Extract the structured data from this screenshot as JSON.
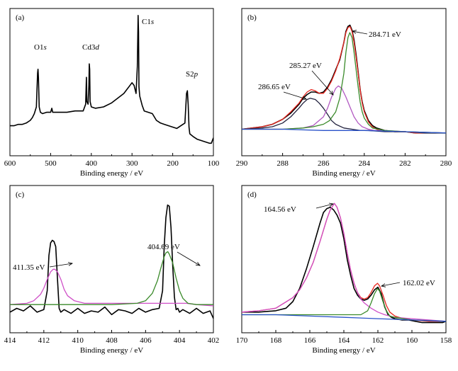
{
  "chart_data": [
    {
      "panel_label": "(a)",
      "type": "line",
      "xlabel": "Binding energy / eV",
      "ylabel": "",
      "xlim": [
        600,
        100
      ],
      "xticks": [
        600,
        500,
        400,
        300,
        200,
        100
      ],
      "x_reversed": true,
      "annotations": [
        {
          "text": "O1s",
          "x": 531
        },
        {
          "text": "Cd3d",
          "x": 405
        },
        {
          "text": "C1s",
          "x": 284.7
        },
        {
          "text": "S2p",
          "x": 162
        }
      ],
      "series": [
        {
          "color": "#000000",
          "x": [
            600,
            590,
            580,
            570,
            560,
            550,
            545,
            540,
            535,
            532,
            531,
            530,
            528,
            525,
            520,
            510,
            500,
            497,
            495,
            480,
            460,
            440,
            420,
            414,
            412,
            411,
            408,
            406,
            405,
            404,
            403,
            400,
            390,
            370,
            350,
            320,
            300,
            295,
            290,
            287,
            285,
            284,
            283,
            281,
            275,
            270,
            260,
            250,
            240,
            230,
            220,
            200,
            190,
            180,
            170,
            166,
            164,
            162,
            160,
            158,
            150,
            140,
            130,
            120,
            110,
            105,
            100
          ],
          "y": [
            0.16,
            0.16,
            0.17,
            0.17,
            0.18,
            0.2,
            0.22,
            0.25,
            0.3,
            0.55,
            0.58,
            0.52,
            0.3,
            0.26,
            0.25,
            0.26,
            0.26,
            0.29,
            0.26,
            0.26,
            0.26,
            0.27,
            0.27,
            0.32,
            0.52,
            0.34,
            0.32,
            0.46,
            0.62,
            0.58,
            0.34,
            0.3,
            0.29,
            0.3,
            0.33,
            0.4,
            0.48,
            0.46,
            0.4,
            0.6,
            0.98,
            0.86,
            0.45,
            0.38,
            0.31,
            0.27,
            0.26,
            0.25,
            0.2,
            0.18,
            0.17,
            0.15,
            0.14,
            0.16,
            0.18,
            0.4,
            0.42,
            0.32,
            0.15,
            0.1,
            0.08,
            0.06,
            0.05,
            0.04,
            0.03,
            0.03,
            0.07
          ]
        }
      ]
    },
    {
      "panel_label": "(b)",
      "type": "line",
      "xlabel": "Binding energy / eV",
      "xlim": [
        290,
        280
      ],
      "xticks": [
        290,
        288,
        286,
        284,
        282,
        280
      ],
      "x_reversed": true,
      "annotations": [
        {
          "text": "284.71 eV",
          "x": 284.71
        },
        {
          "text": "285.27 eV",
          "x": 285.27
        },
        {
          "text": "286.65 eV",
          "x": 286.65
        }
      ],
      "series": [
        {
          "color": "#000000",
          "role": "raw",
          "x": [
            290,
            289.5,
            289,
            288.5,
            288,
            287.6,
            287.2,
            287,
            286.8,
            286.6,
            286.4,
            286.2,
            286,
            285.8,
            285.6,
            285.4,
            285.2,
            285,
            284.9,
            284.8,
            284.7,
            284.6,
            284.5,
            284.4,
            284.3,
            284.2,
            284.1,
            284,
            283.8,
            283.6,
            283.4,
            283.2,
            283,
            282.5,
            282,
            281.5,
            281,
            280.5,
            280
          ],
          "y": [
            0.1,
            0.11,
            0.12,
            0.14,
            0.18,
            0.23,
            0.3,
            0.35,
            0.38,
            0.4,
            0.4,
            0.39,
            0.4,
            0.44,
            0.5,
            0.58,
            0.66,
            0.8,
            0.89,
            0.93,
            0.94,
            0.9,
            0.82,
            0.7,
            0.56,
            0.42,
            0.32,
            0.25,
            0.17,
            0.13,
            0.11,
            0.1,
            0.09,
            0.08,
            0.08,
            0.07,
            0.07,
            0.07,
            0.07
          ]
        },
        {
          "color": "#e8261e",
          "role": "fit envelope",
          "x": [
            290,
            289.5,
            289,
            288.5,
            288,
            287.6,
            287.2,
            287,
            286.8,
            286.6,
            286.4,
            286.2,
            286,
            285.8,
            285.6,
            285.4,
            285.2,
            285,
            284.9,
            284.8,
            284.7,
            284.6,
            284.5,
            284.4,
            284.3,
            284.2,
            284.1,
            284,
            283.8,
            283.6,
            283.4,
            283.2,
            283,
            282.5,
            282,
            281.5,
            281,
            280.5,
            280
          ],
          "y": [
            0.1,
            0.11,
            0.12,
            0.14,
            0.18,
            0.24,
            0.31,
            0.36,
            0.4,
            0.42,
            0.41,
            0.39,
            0.39,
            0.43,
            0.49,
            0.57,
            0.67,
            0.8,
            0.88,
            0.92,
            0.93,
            0.89,
            0.8,
            0.68,
            0.55,
            0.42,
            0.31,
            0.24,
            0.16,
            0.12,
            0.1,
            0.09,
            0.09,
            0.08,
            0.08,
            0.07,
            0.07,
            0.07,
            0.07
          ]
        },
        {
          "color": "#23233f",
          "role": "peak 286.65 eV",
          "x": [
            290,
            289,
            288.5,
            288,
            287.6,
            287.2,
            287,
            286.8,
            286.65,
            286.4,
            286.2,
            286,
            285.8,
            285.6,
            285.4,
            285,
            284.6,
            284.2,
            283.8,
            283,
            282,
            281,
            280
          ],
          "y": [
            0.1,
            0.11,
            0.12,
            0.15,
            0.2,
            0.27,
            0.31,
            0.34,
            0.35,
            0.34,
            0.31,
            0.27,
            0.22,
            0.17,
            0.14,
            0.11,
            0.1,
            0.09,
            0.09,
            0.08,
            0.08,
            0.07,
            0.07
          ]
        },
        {
          "color": "#b259c2",
          "role": "peak 285.27 eV",
          "x": [
            290,
            288,
            287,
            286.5,
            286,
            285.8,
            285.6,
            285.4,
            285.27,
            285.1,
            284.9,
            284.7,
            284.5,
            284.3,
            284.1,
            283.8,
            283.5,
            283,
            282,
            280
          ],
          "y": [
            0.1,
            0.1,
            0.11,
            0.13,
            0.2,
            0.27,
            0.36,
            0.43,
            0.45,
            0.43,
            0.36,
            0.28,
            0.2,
            0.15,
            0.12,
            0.1,
            0.09,
            0.09,
            0.08,
            0.07
          ]
        },
        {
          "color": "#3a8a2a",
          "role": "peak 284.71 eV",
          "x": [
            290,
            288,
            287,
            286.5,
            286,
            285.7,
            285.4,
            285.2,
            285,
            284.9,
            284.8,
            284.71,
            284.6,
            284.5,
            284.4,
            284.3,
            284.2,
            284.1,
            284,
            283.8,
            283.6,
            283.3,
            283,
            282,
            280
          ],
          "y": [
            0.1,
            0.1,
            0.11,
            0.12,
            0.14,
            0.17,
            0.24,
            0.35,
            0.55,
            0.72,
            0.84,
            0.88,
            0.84,
            0.72,
            0.58,
            0.44,
            0.32,
            0.24,
            0.19,
            0.14,
            0.11,
            0.1,
            0.09,
            0.08,
            0.07
          ]
        },
        {
          "color": "#2a52c9",
          "role": "background",
          "x": [
            290,
            288,
            286,
            284,
            282,
            280
          ],
          "y": [
            0.1,
            0.1,
            0.09,
            0.09,
            0.08,
            0.07
          ]
        }
      ]
    },
    {
      "panel_label": "(c)",
      "type": "line",
      "xlabel": "Binding energy / eV",
      "xlim": [
        414,
        402
      ],
      "xticks": [
        414,
        412,
        410,
        408,
        406,
        404,
        402
      ],
      "x_reversed": true,
      "annotations": [
        {
          "text": "411.35 eV",
          "x": 411.35
        },
        {
          "text": "404.69 eV",
          "x": 404.69
        }
      ],
      "series": [
        {
          "color": "#000000",
          "role": "raw",
          "x": [
            414,
            413.6,
            413.2,
            412.8,
            412.4,
            412,
            411.8,
            411.7,
            411.6,
            411.5,
            411.4,
            411.3,
            411.2,
            411.1,
            411,
            410.8,
            410.4,
            410,
            409.6,
            409.2,
            408.8,
            408.4,
            408,
            407.6,
            407.2,
            406.8,
            406.4,
            406,
            405.6,
            405.2,
            405,
            404.9,
            404.8,
            404.7,
            404.6,
            404.5,
            404.4,
            404.3,
            404.2,
            404.1,
            404,
            403.8,
            403.4,
            403,
            402.6,
            402.2,
            402
          ],
          "y": [
            0.13,
            0.16,
            0.14,
            0.18,
            0.13,
            0.15,
            0.3,
            0.58,
            0.68,
            0.7,
            0.69,
            0.65,
            0.4,
            0.16,
            0.13,
            0.15,
            0.12,
            0.16,
            0.12,
            0.14,
            0.13,
            0.17,
            0.11,
            0.15,
            0.14,
            0.12,
            0.16,
            0.13,
            0.15,
            0.16,
            0.3,
            0.65,
            0.88,
            0.98,
            0.97,
            0.8,
            0.5,
            0.25,
            0.15,
            0.16,
            0.13,
            0.15,
            0.12,
            0.16,
            0.12,
            0.14,
            0.08
          ]
        },
        {
          "color": "#cf4fc7",
          "role": "fit 411.35 eV",
          "x": [
            414,
            413,
            412.6,
            412.2,
            412,
            411.8,
            411.6,
            411.45,
            411.35,
            411.2,
            411,
            410.8,
            410.6,
            410.2,
            409.6,
            408,
            406,
            405.4,
            405,
            404.8,
            404.69,
            404.5,
            404.2,
            404,
            403.6,
            403,
            402
          ],
          "y": [
            0.19,
            0.2,
            0.22,
            0.27,
            0.32,
            0.39,
            0.45,
            0.47,
            0.47,
            0.45,
            0.39,
            0.31,
            0.26,
            0.22,
            0.2,
            0.2,
            0.2,
            0.2,
            0.2,
            0.2,
            0.2,
            0.2,
            0.2,
            0.2,
            0.2,
            0.19,
            0.18
          ]
        },
        {
          "color": "#3a8a2a",
          "role": "fit 404.69 eV",
          "x": [
            414,
            410,
            408,
            406.5,
            406,
            405.6,
            405.3,
            405.1,
            404.9,
            404.8,
            404.69,
            404.6,
            404.4,
            404.2,
            404,
            403.8,
            403.5,
            403,
            402.5,
            402
          ],
          "y": [
            0.19,
            0.19,
            0.19,
            0.2,
            0.22,
            0.28,
            0.38,
            0.48,
            0.57,
            0.6,
            0.61,
            0.59,
            0.52,
            0.4,
            0.3,
            0.24,
            0.2,
            0.19,
            0.19,
            0.19
          ]
        }
      ]
    },
    {
      "panel_label": "(d)",
      "type": "line",
      "xlabel": "Binding energy / eV",
      "xlim": [
        170,
        158
      ],
      "xticks": [
        170,
        168,
        166,
        164,
        162,
        160,
        158
      ],
      "x_reversed": true,
      "annotations": [
        {
          "text": "164.56 eV",
          "x": 164.56
        },
        {
          "text": "162.02 eV",
          "x": 162.02
        }
      ],
      "series": [
        {
          "color": "#000000",
          "role": "raw",
          "x": [
            170,
            169,
            168,
            167.4,
            167,
            166.6,
            166.2,
            165.8,
            165.4,
            165.2,
            165,
            164.8,
            164.6,
            164.4,
            164.2,
            164,
            163.8,
            163.6,
            163.4,
            163.2,
            163,
            162.8,
            162.6,
            162.4,
            162.2,
            162,
            161.8,
            161.6,
            161.4,
            161.2,
            161,
            160.6,
            160.2,
            159.8,
            159.4,
            159,
            158.6,
            158.2,
            158
          ],
          "y": [
            0.12,
            0.12,
            0.13,
            0.15,
            0.2,
            0.3,
            0.45,
            0.62,
            0.8,
            0.88,
            0.91,
            0.92,
            0.9,
            0.86,
            0.8,
            0.68,
            0.52,
            0.4,
            0.3,
            0.25,
            0.22,
            0.21,
            0.22,
            0.25,
            0.29,
            0.31,
            0.26,
            0.16,
            0.1,
            0.08,
            0.07,
            0.06,
            0.06,
            0.05,
            0.04,
            0.04,
            0.04,
            0.04,
            0.05
          ]
        },
        {
          "color": "#e8261e",
          "role": "fit envelope",
          "x": [
            170,
            169,
            168,
            167,
            166.6,
            166.2,
            165.8,
            165.4,
            165,
            164.8,
            164.56,
            164.4,
            164.2,
            164,
            163.8,
            163.6,
            163.4,
            163.2,
            163,
            162.8,
            162.6,
            162.4,
            162.2,
            162.02,
            161.9,
            161.7,
            161.5,
            161.3,
            161,
            160.5,
            160,
            159,
            158
          ],
          "y": [
            0.12,
            0.13,
            0.15,
            0.23,
            0.29,
            0.38,
            0.5,
            0.66,
            0.83,
            0.9,
            0.95,
            0.92,
            0.84,
            0.72,
            0.57,
            0.44,
            0.34,
            0.27,
            0.23,
            0.22,
            0.23,
            0.27,
            0.32,
            0.34,
            0.32,
            0.25,
            0.17,
            0.12,
            0.09,
            0.07,
            0.06,
            0.05,
            0.05
          ]
        },
        {
          "color": "#cf4fc7",
          "role": "fit 164.56 eV",
          "x": [
            170,
            169,
            168,
            167,
            166.6,
            166.2,
            165.8,
            165.4,
            165,
            164.8,
            164.56,
            164.4,
            164.2,
            164,
            163.8,
            163.6,
            163.4,
            163.2,
            163,
            162.8,
            162.4,
            162,
            161.6,
            161,
            160,
            159,
            158
          ],
          "y": [
            0.12,
            0.13,
            0.15,
            0.23,
            0.29,
            0.38,
            0.5,
            0.66,
            0.83,
            0.9,
            0.95,
            0.92,
            0.84,
            0.72,
            0.57,
            0.44,
            0.34,
            0.27,
            0.22,
            0.19,
            0.15,
            0.12,
            0.1,
            0.08,
            0.07,
            0.06,
            0.05
          ]
        },
        {
          "color": "#3a8a2a",
          "role": "fit 162.02 eV",
          "x": [
            170,
            168,
            166,
            164,
            163,
            162.6,
            162.4,
            162.2,
            162.02,
            161.9,
            161.7,
            161.5,
            161.3,
            161,
            160.5,
            160,
            158
          ],
          "y": [
            0.1,
            0.1,
            0.1,
            0.1,
            0.1,
            0.13,
            0.19,
            0.26,
            0.3,
            0.28,
            0.2,
            0.13,
            0.09,
            0.08,
            0.07,
            0.06,
            0.05
          ]
        },
        {
          "color": "#2a52c9",
          "role": "background",
          "x": [
            170,
            168,
            166,
            164,
            162,
            160,
            158
          ],
          "y": [
            0.1,
            0.1,
            0.09,
            0.08,
            0.07,
            0.06,
            0.05
          ]
        }
      ]
    }
  ]
}
